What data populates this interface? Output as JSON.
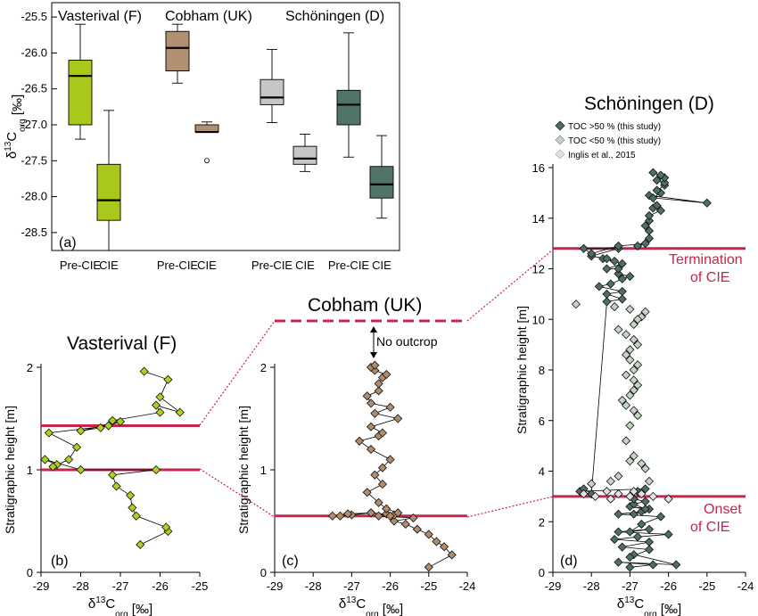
{
  "chart_data": [
    {
      "type": "box",
      "panel": "(a)",
      "ylabel": "δ13Corg [‰]",
      "ylim": [
        -28.75,
        -25.3
      ],
      "yticks": [
        -25.5,
        -26.0,
        -26.5,
        -27.0,
        -27.5,
        -28.0,
        -28.5
      ],
      "ytick_labels": [
        "-25.5",
        "-26.0",
        "-26.5",
        "-27.0",
        "-27.5",
        "-28.0",
        "-28.5"
      ],
      "groups": [
        {
          "site": "Vasterival (F)",
          "boxes": [
            {
              "label": "Pre-CIE",
              "color": "#a8c81c",
              "min": -27.2,
              "q1": -27.0,
              "median": -26.32,
              "q3": -26.1,
              "max": -25.6,
              "outliers": []
            },
            {
              "label": "CIE",
              "color": "#a8c81c",
              "min": -28.75,
              "q1": -28.33,
              "median": -28.05,
              "q3": -27.55,
              "max": -26.8,
              "outliers": []
            }
          ]
        },
        {
          "site": "Cobham (UK)",
          "boxes": [
            {
              "label": "Pre-CIE",
              "color": "#b09070",
              "min": -26.42,
              "q1": -26.25,
              "median": -25.93,
              "q3": -25.7,
              "max": -25.6,
              "outliers": []
            },
            {
              "label": "CIE",
              "color": "#b09070",
              "min": -27.1,
              "q1": -27.1,
              "median": -27.1,
              "q3": -27.0,
              "max": -26.96,
              "outliers": [
                -27.5
              ]
            }
          ]
        },
        {
          "site": "Schöningen (D)",
          "boxes": [
            {
              "label": "Pre-CIE",
              "color": "#c6c6c6",
              "min": -26.97,
              "q1": -26.72,
              "median": -26.62,
              "q3": -26.37,
              "max": -25.95,
              "outliers": []
            },
            {
              "label": "CIE",
              "color": "#c6c6c6",
              "min": -27.65,
              "q1": -27.55,
              "median": -27.47,
              "q3": -27.3,
              "max": -27.13,
              "outliers": []
            },
            {
              "label": "Pre-CIE",
              "color": "#527468",
              "min": -27.45,
              "q1": -27.0,
              "median": -26.72,
              "q3": -26.52,
              "max": -25.72,
              "outliers": []
            },
            {
              "label": "CIE",
              "color": "#527468",
              "min": -28.3,
              "q1": -28.02,
              "median": -27.83,
              "q3": -27.58,
              "max": -27.15,
              "outliers": []
            }
          ]
        }
      ]
    },
    {
      "type": "line",
      "panel": "(b)",
      "title": "Vasterival (F)",
      "xlabel": "δ13Corg [‰]",
      "ylabel": "Stratigraphic height [m]",
      "xlim": [
        -29,
        -25
      ],
      "ylim": [
        0,
        2
      ],
      "xticks": [
        -29,
        -28,
        -27,
        -26,
        -25
      ],
      "yticks": [
        0,
        1,
        2
      ],
      "marker_color": "#a8d21e",
      "boundaries": [
        1.0,
        1.43
      ],
      "series": [
        {
          "x": [
            -26.5,
            -25.8,
            -25.85,
            -26.6,
            -26.7,
            -26.75,
            -27.1,
            -27.2,
            -26.1,
            -28.0,
            -28.9,
            -28.6,
            -28.7,
            -28.3,
            -28.1,
            -28.8,
            -27.3,
            -27.0,
            -28.0,
            -27.5,
            -27.2,
            -26.0,
            -26.1,
            -25.5,
            -26.0,
            -25.8,
            -26.4
          ],
          "y": [
            0.27,
            0.4,
            0.44,
            0.55,
            0.63,
            0.75,
            0.84,
            0.95,
            1.0,
            1.0,
            1.1,
            1.05,
            1.03,
            1.1,
            1.22,
            1.36,
            1.43,
            1.47,
            1.38,
            1.41,
            1.48,
            1.56,
            1.63,
            1.56,
            1.71,
            1.88,
            1.96
          ]
        }
      ]
    },
    {
      "type": "line",
      "panel": "(c)",
      "title": "Cobham (UK)",
      "xlabel": "δ13Corg [‰]",
      "ylabel": "Stratigraphic height [m]",
      "xlim": [
        -29,
        -24
      ],
      "ylim": [
        0,
        2
      ],
      "xticks": [
        -29,
        -28,
        -27,
        -26,
        -25,
        -24
      ],
      "yticks": [
        0,
        1,
        2
      ],
      "marker_color": "#b08c6a",
      "boundaries": [
        0.55
      ],
      "annotation": "No outcrop",
      "series": [
        {
          "x": [
            -25.0,
            -24.4,
            -24.6,
            -24.8,
            -25.0,
            -25.3,
            -25.6,
            -25.9,
            -25.4,
            -26.3,
            -26.1,
            -25.9,
            -26.5,
            -27.0,
            -27.3,
            -27.5,
            -27.1,
            -26.5,
            -26.0,
            -25.8,
            -26.1,
            -26.3,
            -26.6,
            -26.2,
            -26.4,
            -26.2,
            -26.0,
            -26.5,
            -26.8,
            -26.3,
            -26.2,
            -26.5,
            -25.8,
            -26.4,
            -26.0,
            -26.5,
            -26.6,
            -26.3,
            -26.3,
            -26.2,
            -26.1,
            -26.4,
            -26.5,
            -26.4
          ],
          "y": [
            0.05,
            0.17,
            0.25,
            0.3,
            0.37,
            0.42,
            0.47,
            0.5,
            0.53,
            0.55,
            0.57,
            0.56,
            0.58,
            0.56,
            0.55,
            0.55,
            0.57,
            0.58,
            0.55,
            0.58,
            0.62,
            0.68,
            0.78,
            0.86,
            0.95,
            1.02,
            1.1,
            1.2,
            1.28,
            1.33,
            1.36,
            1.42,
            1.5,
            1.55,
            1.61,
            1.65,
            1.72,
            1.77,
            1.84,
            1.9,
            1.93,
            1.97,
            2.0,
            2.02
          ]
        }
      ]
    },
    {
      "type": "scatter",
      "panel": "(d)",
      "title": "Schöningen (D)",
      "xlabel": "δ13Corg [‰]",
      "ylabel": "Stratigraphic height [m]",
      "xlim": [
        -29,
        -24
      ],
      "ylim": [
        0,
        16
      ],
      "xticks": [
        -29,
        -28,
        -27,
        -26,
        -25,
        -24
      ],
      "yticks": [
        0,
        2,
        4,
        6,
        8,
        10,
        12,
        14,
        16
      ],
      "boundaries": [
        3.0,
        12.8
      ],
      "boundary_labels": [
        "Onset\nof CIE",
        "Termination\nof CIE"
      ],
      "series": [
        {
          "name": "TOC >50 % (this study)",
          "color": "#4e6e66",
          "connected": true,
          "x": [
            -27.0,
            -26.4,
            -27.3,
            -25.8,
            -26.9,
            -27.0,
            -26.5,
            -27.2,
            -26.5,
            -27.4,
            -26.8,
            -26.0,
            -27.3,
            -26.5,
            -27.0,
            -26.7,
            -26.2,
            -27.3,
            -26.7,
            -26.9,
            -26.5,
            -27.0,
            -26.6,
            -26.9,
            -26.6,
            -26.9,
            -27.0,
            -26.8,
            -26.6,
            -28.3,
            -28.2,
            -28.0,
            -27.6,
            -27.2,
            -27.6,
            -27.2,
            -27.8,
            -27.5,
            -27.2,
            -27.0,
            -27.3,
            -27.3,
            -27.6,
            -27.2,
            -27.7,
            -27.4,
            -27.6,
            -28.0,
            -27.3,
            -28.2,
            -28.0,
            -27.3,
            -26.6,
            -26.8,
            -26.5,
            -26.5,
            -26.6,
            -26.5,
            -26.5,
            -26.2,
            -26.4,
            -26.3,
            -26.5,
            -25.0,
            -26.4,
            -26.2,
            -26.3,
            -26.1,
            -26.1,
            -26.3,
            -26.1,
            -26.2,
            -26.4
          ],
          "y": [
            0.2,
            0.3,
            0.4,
            0.3,
            0.7,
            0.6,
            0.9,
            1.0,
            1.2,
            1.3,
            1.4,
            1.5,
            1.6,
            1.7,
            1.6,
            1.9,
            2.2,
            2.3,
            2.4,
            2.3,
            2.5,
            2.6,
            2.5,
            2.7,
            2.8,
            2.9,
            3.0,
            3.2,
            3.3,
            3.2,
            3.3,
            3.1,
            10.7,
            10.8,
            11.0,
            11.1,
            11.3,
            11.4,
            11.6,
            11.7,
            11.8,
            12.0,
            12.0,
            12.2,
            12.4,
            12.3,
            12.4,
            12.5,
            12.8,
            12.8,
            12.6,
            12.9,
            13.0,
            12.9,
            13.2,
            13.5,
            13.7,
            13.9,
            14.1,
            14.3,
            14.4,
            14.5,
            14.9,
            14.6,
            14.8,
            15.0,
            15.1,
            15.3,
            15.4,
            15.5,
            15.6,
            15.7,
            15.8
          ]
        },
        {
          "name": "TOC <50 % (this study)",
          "color": "#c4d4c4",
          "connected": false,
          "x": [
            -28.4,
            -27.4,
            -27.0,
            -26.6,
            -26.7,
            -26.8,
            -26.9,
            -27.3,
            -27.1,
            -26.9,
            -26.8,
            -27.0,
            -27.1,
            -27.0,
            -26.8,
            -26.9,
            -27.1,
            -26.9,
            -26.8,
            -26.9,
            -27.0,
            -27.2,
            -27.1,
            -26.9,
            -26.8,
            -27.0,
            -27.1,
            -26.9,
            -27.0,
            -26.7,
            -26.6,
            -27.3,
            -27.5,
            -28.0,
            -26.5
          ],
          "y": [
            10.6,
            10.5,
            10.4,
            10.3,
            10.1,
            10.0,
            9.8,
            9.6,
            9.4,
            9.2,
            9.0,
            8.8,
            8.6,
            8.4,
            8.2,
            8.0,
            7.8,
            7.6,
            7.4,
            7.2,
            7.0,
            6.8,
            6.6,
            6.4,
            6.2,
            5.8,
            5.2,
            4.6,
            4.4,
            4.3,
            4.1,
            3.8,
            3.6,
            3.5,
            3.6
          ]
        },
        {
          "name": "Inglis et al., 2015",
          "color": "#e2e2e2",
          "connected": false,
          "x": [
            -28.2,
            -27.9,
            -27.6,
            -27.3,
            -27.0,
            -26.7,
            -26.4,
            -26.0,
            -27.5,
            -26.9
          ],
          "y": [
            3.1,
            3.0,
            3.2,
            3.1,
            3.0,
            3.1,
            3.0,
            2.9,
            2.9,
            3.2
          ]
        }
      ]
    }
  ],
  "labels": {
    "vasterival": "Vasterival (F)",
    "cobham": "Cobham (UK)",
    "schoningen": "Schöningen (D)",
    "pre_cie": "Pre-CIE",
    "cie": "CIE",
    "panel_a": "(a)",
    "panel_b": "(b)",
    "panel_c": "(c)",
    "panel_d": "(d)",
    "ylabel_strat": "Stratigraphic height [m]",
    "d13c_prefix": "δ",
    "d13c_sup": "13",
    "d13c_main": "C",
    "d13c_sub": "org",
    "d13c_unit": " [‰]",
    "no_outcrop": "No outcrop",
    "termination_1": "Termination",
    "termination_2": "of CIE",
    "onset_1": "Onset",
    "onset_2": "of CIE",
    "legend_1": "TOC >50 % (this study)",
    "legend_2": "TOC <50 % (this study)",
    "legend_3": "Inglis et al., 2015"
  }
}
